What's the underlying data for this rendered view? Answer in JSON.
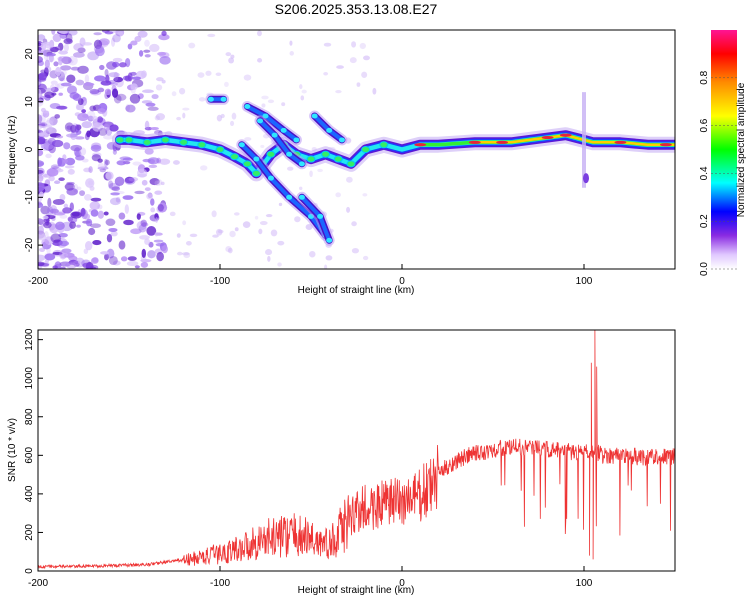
{
  "title": "S206.2025.353.13.08.E27",
  "colors": {
    "snr_line": "#ee3333",
    "spectrogram_base": "#9d6ee8",
    "ridge_core": "#e8223a"
  },
  "chart_data": [
    {
      "type": "heatmap",
      "name": "spectrogram",
      "xlabel": "Height of straight line (km)",
      "ylabel": "Frequency (Hz)",
      "xlim": [
        -200,
        150
      ],
      "ylim": [
        -25,
        25
      ],
      "x_ticks": [
        -200,
        -100,
        0,
        100
      ],
      "y_ticks": [
        -20,
        -10,
        0,
        10,
        20
      ],
      "colorbar": {
        "label": "Normalized spectral amplitude",
        "range": [
          0,
          1
        ],
        "ticks": [
          "0.0",
          "0.2",
          "0.4",
          "0.6",
          "0.8"
        ],
        "tick_values": [
          0,
          0.2,
          0.4,
          0.6,
          0.8
        ],
        "stops": [
          "#ffffff",
          "#e0c8ff",
          "#8a2be2",
          "#0000ff",
          "#00ffff",
          "#00ff00",
          "#ffff00",
          "#ff8c00",
          "#ff0000",
          "#ff1493"
        ]
      },
      "main_ridge": [
        [
          -155,
          2
        ],
        [
          -150,
          2
        ],
        [
          -140,
          1.5
        ],
        [
          -130,
          2
        ],
        [
          -120,
          1.5
        ],
        [
          -110,
          1
        ],
        [
          -100,
          0
        ],
        [
          -92,
          -1.5
        ],
        [
          -85,
          -3
        ],
        [
          -80,
          -5
        ],
        [
          -72,
          -1
        ],
        [
          -65,
          1
        ],
        [
          -58,
          -1
        ],
        [
          -50,
          -2
        ],
        [
          -42,
          -1
        ],
        [
          -35,
          -2
        ],
        [
          -28,
          -3
        ],
        [
          -20,
          0
        ],
        [
          -10,
          1
        ],
        [
          0,
          0
        ],
        [
          10,
          1
        ],
        [
          20,
          1
        ],
        [
          40,
          1.5
        ],
        [
          60,
          1.5
        ],
        [
          70,
          2
        ],
        [
          80,
          2.5
        ],
        [
          90,
          3
        ],
        [
          100,
          2
        ],
        [
          105,
          1.5
        ],
        [
          120,
          1.5
        ],
        [
          135,
          1
        ],
        [
          150,
          1
        ]
      ],
      "side_branches": [
        [
          [
            -105,
            10.5
          ],
          [
            -98,
            10.5
          ]
        ],
        [
          [
            -85,
            9
          ],
          [
            -75,
            7
          ],
          [
            -65,
            4
          ],
          [
            -58,
            2
          ]
        ],
        [
          [
            -78,
            6
          ],
          [
            -70,
            3
          ],
          [
            -62,
            -1
          ],
          [
            -55,
            -3
          ]
        ],
        [
          [
            -88,
            1
          ],
          [
            -80,
            -2
          ],
          [
            -72,
            -6
          ],
          [
            -62,
            -10
          ],
          [
            -50,
            -14
          ],
          [
            -42,
            -18
          ]
        ],
        [
          [
            -48,
            7
          ],
          [
            -40,
            4
          ],
          [
            -33,
            2
          ]
        ],
        [
          [
            -55,
            -10
          ],
          [
            -45,
            -14
          ],
          [
            -40,
            -19
          ]
        ]
      ],
      "vertical_feature_x": 100
    },
    {
      "type": "line",
      "name": "snr",
      "xlabel": "Height of straight line (km)",
      "ylabel": "SNR (10 * v/v)",
      "xlim": [
        -200,
        150
      ],
      "ylim": [
        0,
        1250
      ],
      "x_ticks": [
        -200,
        -100,
        0,
        100
      ],
      "y_ticks": [
        0,
        200,
        400,
        600,
        800,
        1000,
        1200
      ],
      "envelope": [
        [
          -200,
          25
        ],
        [
          -180,
          25
        ],
        [
          -160,
          30
        ],
        [
          -140,
          35
        ],
        [
          -120,
          60
        ],
        [
          -100,
          100
        ],
        [
          -90,
          130
        ],
        [
          -80,
          170
        ],
        [
          -70,
          200
        ],
        [
          -60,
          210
        ],
        [
          -50,
          190
        ],
        [
          -40,
          150
        ],
        [
          -30,
          280
        ],
        [
          -25,
          320
        ],
        [
          -20,
          340
        ],
        [
          -15,
          360
        ],
        [
          -10,
          370
        ],
        [
          -5,
          380
        ],
        [
          0,
          390
        ],
        [
          5,
          400
        ],
        [
          10,
          420
        ],
        [
          15,
          460
        ],
        [
          20,
          520
        ],
        [
          30,
          580
        ],
        [
          40,
          620
        ],
        [
          50,
          640
        ],
        [
          60,
          650
        ],
        [
          70,
          650
        ],
        [
          80,
          640
        ],
        [
          90,
          630
        ],
        [
          100,
          620
        ],
        [
          105,
          640
        ],
        [
          110,
          610
        ],
        [
          120,
          610
        ],
        [
          130,
          600
        ],
        [
          140,
          605
        ],
        [
          150,
          600
        ]
      ],
      "spikes": [
        [
          104,
          1080
        ],
        [
          106,
          1250
        ],
        [
          107,
          1060
        ],
        [
          103,
          80
        ],
        [
          105,
          60
        ]
      ]
    }
  ]
}
